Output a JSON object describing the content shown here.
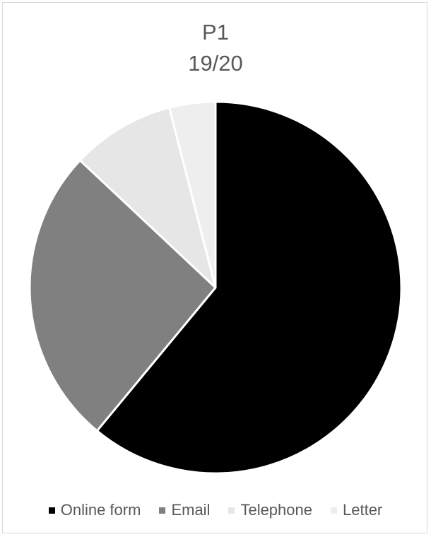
{
  "chart_data": {
    "type": "pie",
    "title_lines": [
      "P1",
      "19/20"
    ],
    "slices": [
      {
        "label": "Online form",
        "value": 61,
        "color": "#000000"
      },
      {
        "label": "Email",
        "value": 26,
        "color": "#808080"
      },
      {
        "label": "Telephone",
        "value": 9,
        "color": "#e6e6e6"
      },
      {
        "label": "Letter",
        "value": 4,
        "color": "#eeeeee"
      }
    ],
    "legend_position": "bottom"
  }
}
